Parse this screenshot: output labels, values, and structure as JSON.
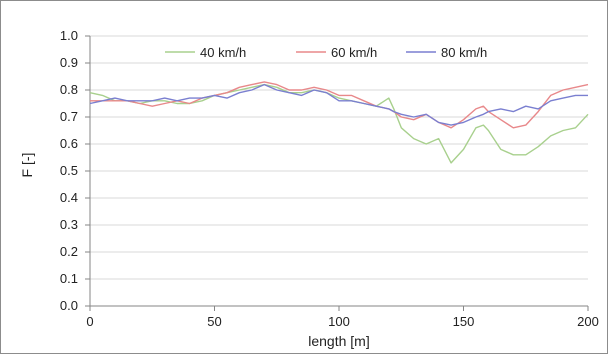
{
  "chart_data": {
    "type": "line",
    "title": "",
    "xlabel": "length  [m]",
    "ylabel": "F [-]",
    "xlim": [
      0,
      200
    ],
    "ylim": [
      0.0,
      1.0
    ],
    "x_ticks": [
      "0",
      "50",
      "100",
      "150",
      "200"
    ],
    "y_ticks": [
      "0.0",
      "0.1",
      "0.2",
      "0.3",
      "0.4",
      "0.5",
      "0.6",
      "0.7",
      "0.8",
      "0.9",
      "1.0"
    ],
    "grid": "horizontal",
    "legend_position": "top",
    "x": [
      0,
      5,
      10,
      15,
      20,
      25,
      30,
      35,
      40,
      45,
      50,
      55,
      60,
      65,
      70,
      75,
      80,
      85,
      90,
      95,
      100,
      105,
      110,
      115,
      120,
      122,
      125,
      130,
      135,
      140,
      145,
      150,
      155,
      158,
      160,
      165,
      170,
      175,
      180,
      185,
      190,
      195,
      200
    ],
    "series": [
      {
        "name": "40 km/h",
        "color": "#a8d08d",
        "values": [
          0.79,
          0.78,
          0.76,
          0.76,
          0.75,
          0.76,
          0.76,
          0.75,
          0.75,
          0.76,
          0.78,
          0.79,
          0.8,
          0.81,
          0.82,
          0.81,
          0.79,
          0.79,
          0.8,
          0.79,
          0.77,
          0.76,
          0.75,
          0.74,
          0.77,
          0.73,
          0.66,
          0.62,
          0.6,
          0.62,
          0.53,
          0.58,
          0.66,
          0.67,
          0.65,
          0.58,
          0.56,
          0.56,
          0.59,
          0.63,
          0.65,
          0.66,
          0.71
        ]
      },
      {
        "name": "60 km/h",
        "color": "#e8888a",
        "values": [
          0.76,
          0.76,
          0.76,
          0.76,
          0.75,
          0.74,
          0.75,
          0.76,
          0.75,
          0.77,
          0.78,
          0.79,
          0.81,
          0.82,
          0.83,
          0.82,
          0.8,
          0.8,
          0.81,
          0.8,
          0.78,
          0.78,
          0.76,
          0.74,
          0.73,
          0.72,
          0.7,
          0.69,
          0.71,
          0.68,
          0.66,
          0.69,
          0.73,
          0.74,
          0.72,
          0.69,
          0.66,
          0.67,
          0.72,
          0.78,
          0.8,
          0.81,
          0.82
        ]
      },
      {
        "name": "80 km/h",
        "color": "#7a7fd0",
        "values": [
          0.75,
          0.76,
          0.77,
          0.76,
          0.76,
          0.76,
          0.77,
          0.76,
          0.77,
          0.77,
          0.78,
          0.77,
          0.79,
          0.8,
          0.82,
          0.8,
          0.79,
          0.78,
          0.8,
          0.79,
          0.76,
          0.76,
          0.75,
          0.74,
          0.73,
          0.72,
          0.71,
          0.7,
          0.71,
          0.68,
          0.67,
          0.68,
          0.7,
          0.71,
          0.72,
          0.73,
          0.72,
          0.74,
          0.73,
          0.76,
          0.77,
          0.78,
          0.78
        ]
      }
    ]
  }
}
